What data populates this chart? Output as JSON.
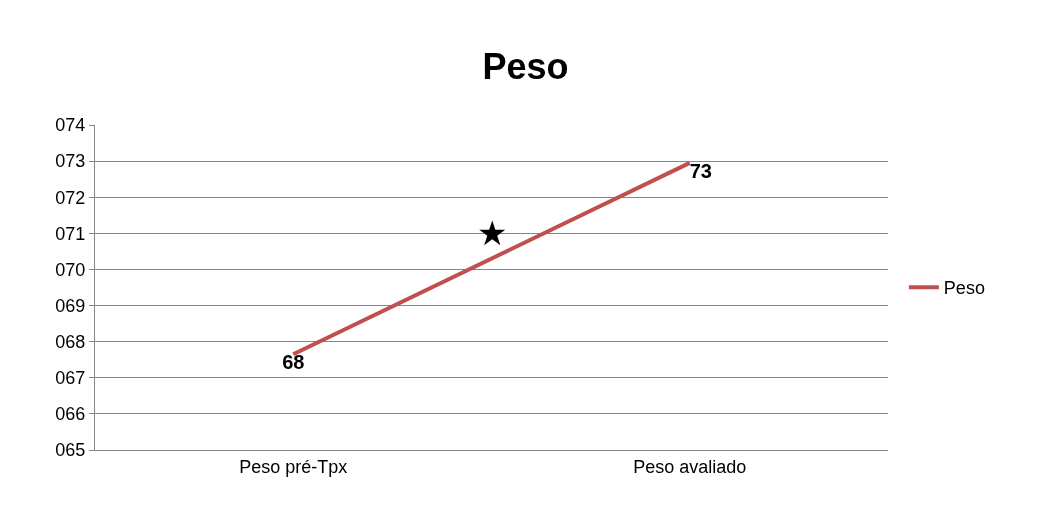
{
  "chart_data": {
    "type": "line",
    "title": "Peso",
    "categories": [
      "Peso pré-Tpx",
      "Peso avaliado"
    ],
    "series": [
      {
        "name": "Peso",
        "color": "#c0504d",
        "values": [
          67.65,
          72.95
        ],
        "value_labels": [
          "68",
          "73"
        ]
      }
    ],
    "ylim": [
      65,
      74
    ],
    "yticks": [
      {
        "value": 65,
        "label": "065"
      },
      {
        "value": 66,
        "label": "066"
      },
      {
        "value": 67,
        "label": "067"
      },
      {
        "value": 68,
        "label": "068"
      },
      {
        "value": 69,
        "label": "069"
      },
      {
        "value": 70,
        "label": "070"
      },
      {
        "value": 71,
        "label": "071"
      },
      {
        "value": 72,
        "label": "072"
      },
      {
        "value": 73,
        "label": "073"
      },
      {
        "value": 74,
        "label": "074"
      }
    ],
    "annotations": [
      "★"
    ],
    "grid": "y",
    "legend": "right",
    "marker": "none",
    "line_style": "solid"
  }
}
